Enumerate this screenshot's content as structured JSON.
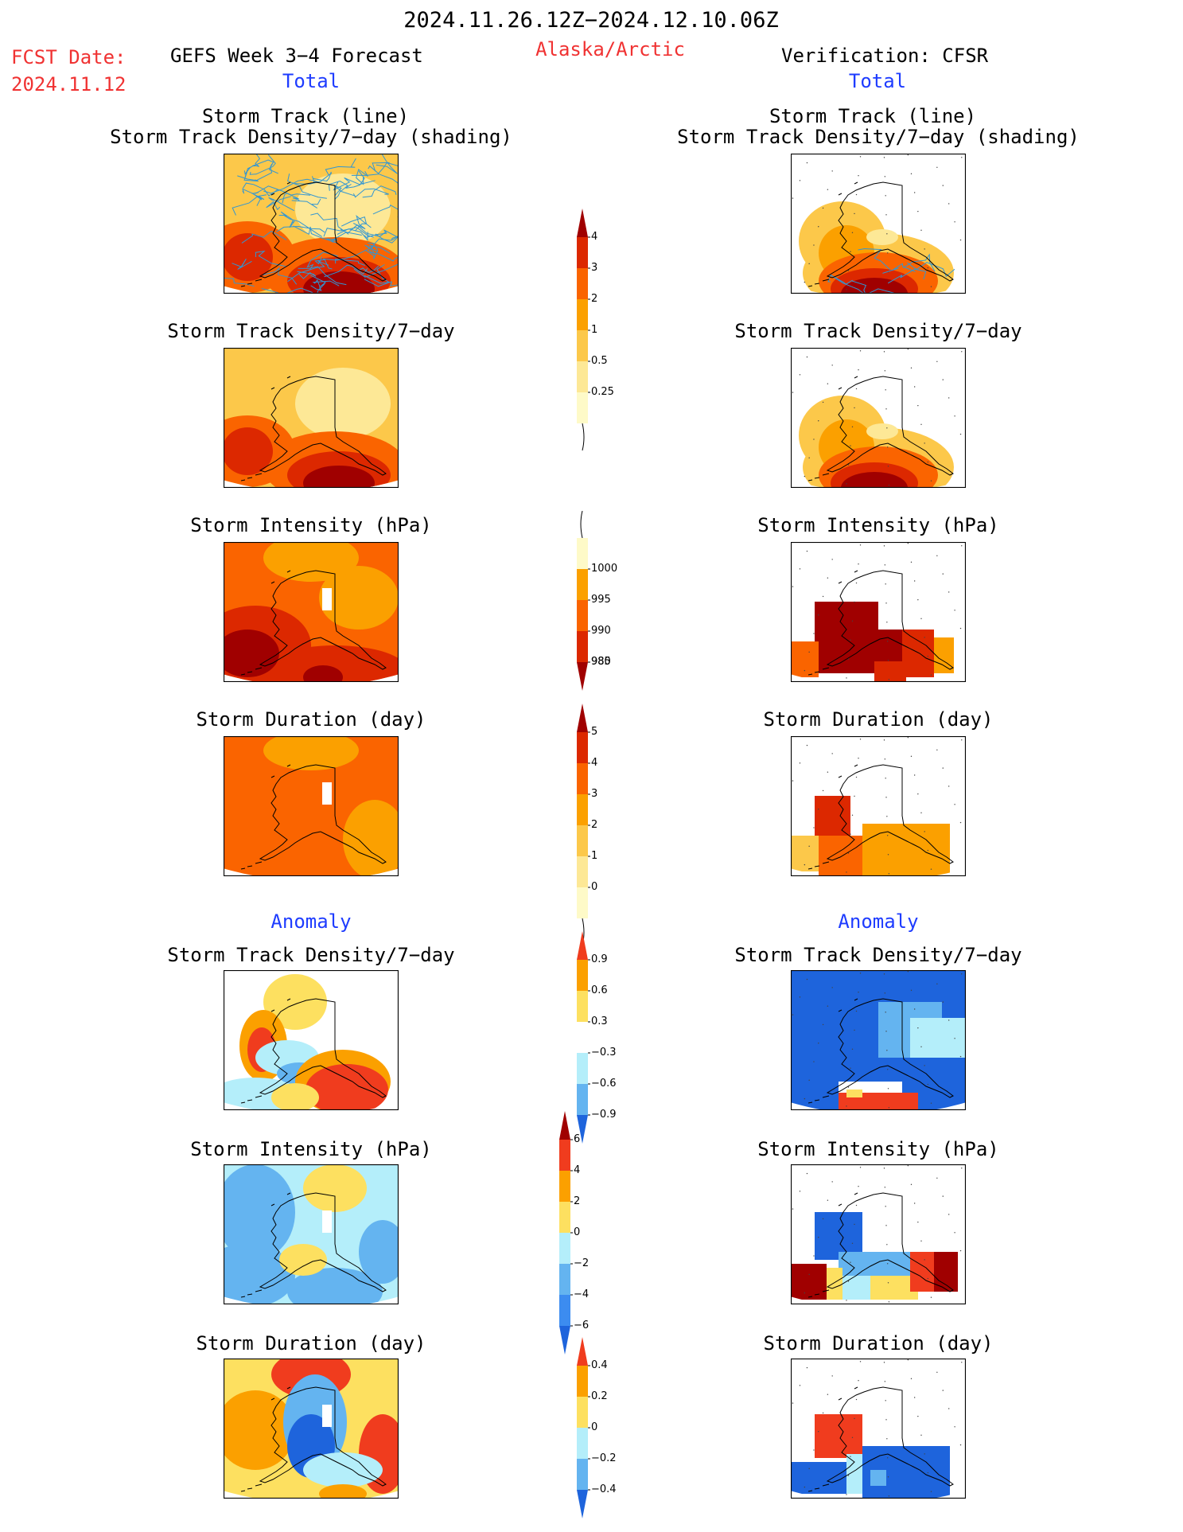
{
  "header": {
    "period": "2024.11.26.12Z−2024.12.10.06Z",
    "region": "Alaska/Arctic",
    "fcst_label": "FCST Date:",
    "fcst_date": "2024.11.12",
    "left_title": "GEFS Week 3−4 Forecast",
    "right_title": "Verification: CFSR"
  },
  "sections": {
    "total": "Total",
    "anomaly": "Anomaly"
  },
  "panel_titles": {
    "track_line": "Storm Track (line)",
    "track_shading": "Storm Track Density/7−day (shading)",
    "density": "Storm Track Density/7−day",
    "intensity": "Storm Intensity (hPa)",
    "duration": "Storm Duration (day)"
  },
  "colorbars": {
    "density": {
      "ticks": [
        "4",
        "3",
        "2",
        "1",
        "0.5",
        "0.25"
      ],
      "colors": [
        "#a00000",
        "#dc2800",
        "#fa6400",
        "#fba000",
        "#fcc84a",
        "#fde896",
        "#fefac8"
      ]
    },
    "intensity": {
      "ticks": [
        "1000",
        "995",
        "990",
        "985",
        "980"
      ],
      "colors": [
        "#fefac8",
        "#fba000",
        "#fa6400",
        "#dc2800",
        "#a00000"
      ]
    },
    "duration": {
      "ticks": [
        "5",
        "4",
        "3",
        "2",
        "1",
        "0"
      ],
      "colors": [
        "#a00000",
        "#dc2800",
        "#fa6400",
        "#fba000",
        "#fcc84a",
        "#fde896",
        "#fefac8"
      ]
    },
    "density_anom": {
      "ticks": [
        "0.9",
        "0.6",
        "0.3",
        "−0.3",
        "−0.6",
        "−0.9"
      ],
      "colors": [
        "#f03c1e",
        "#fba000",
        "#fde060",
        "#ffffff",
        "#b4eefa",
        "#64b4f0",
        "#1e64dc"
      ]
    },
    "intensity_anom": {
      "ticks": [
        "6",
        "4",
        "2",
        "0",
        "−2",
        "−4",
        "−6"
      ],
      "colors": [
        "#a00000",
        "#f03c1e",
        "#fba000",
        "#fde060",
        "#b4eefa",
        "#64b4f0",
        "#3c8cf0",
        "#1e64dc"
      ]
    },
    "duration_anom": {
      "ticks": [
        "0.4",
        "0.2",
        "0",
        "−0.2",
        "−0.4"
      ],
      "colors": [
        "#f03c1e",
        "#fba000",
        "#fde060",
        "#b4eefa",
        "#64b4f0",
        "#1e64dc"
      ]
    }
  },
  "palette": {
    "dark_red": "#a00000",
    "red": "#dc2800",
    "orange": "#fa6400",
    "light_orange": "#fba000",
    "yellow": "#fde896",
    "track_line": "#3296d2",
    "blue": "#1e64dc",
    "light_blue": "#b4eefa"
  }
}
